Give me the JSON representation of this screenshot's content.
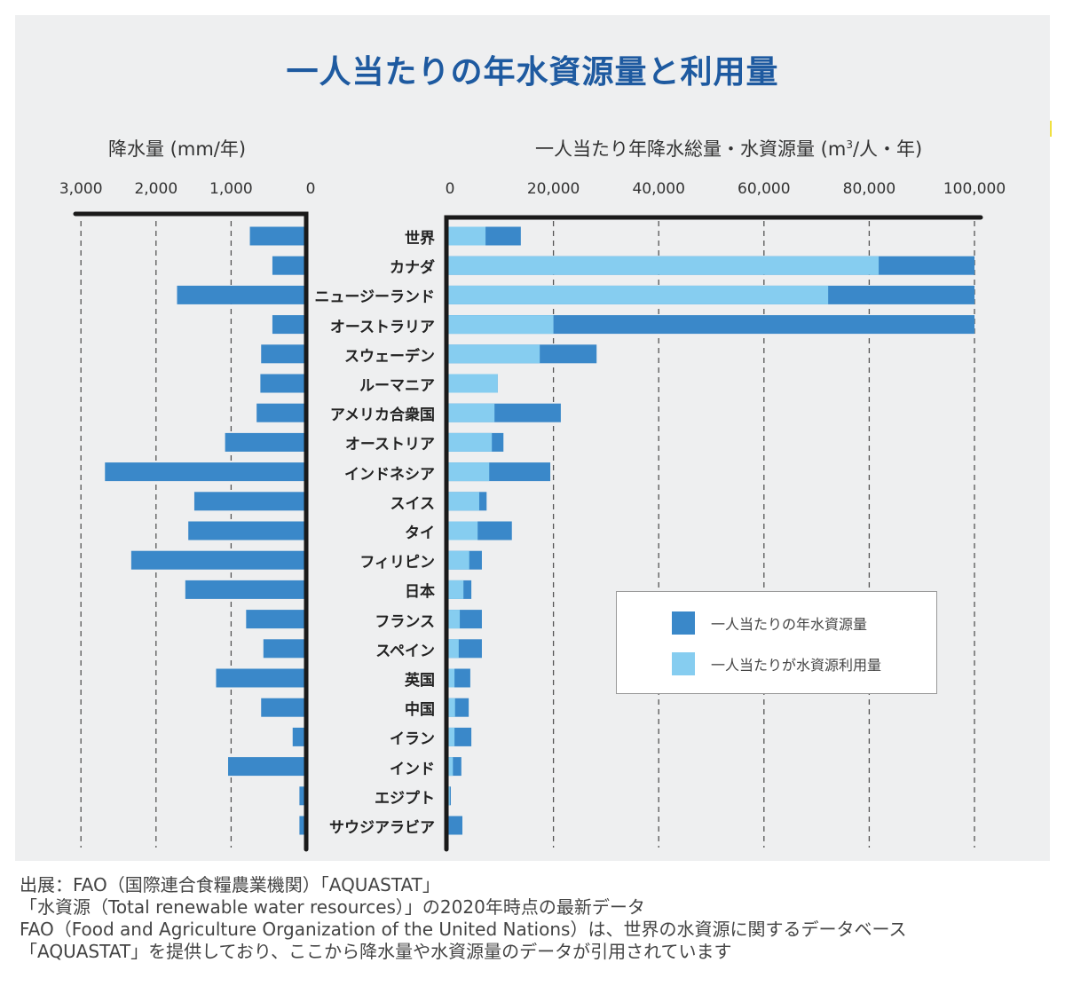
{
  "chart_data": [
    {
      "type": "bar",
      "orientation": "horizontal",
      "direction": "right-to-left",
      "title": "降水量 (mm/年)",
      "xlabel": "降水量 (mm/年)",
      "xlim": [
        0,
        3000
      ],
      "ticks": [
        3000,
        2000,
        1000,
        0
      ],
      "tick_labels": [
        "3,000",
        "2,000",
        "1,000",
        "0"
      ],
      "grid": "dashed-vertical",
      "categories": [
        "世界",
        "カナダ",
        "ニュージーランド",
        "オーストラリア",
        "スウェーデン",
        "ルーマニア",
        "アメリカ合衆国",
        "オーストリア",
        "インドネシア",
        "スイス",
        "タイ",
        "フィリピン",
        "日本",
        "フランス",
        "スペイン",
        "英国",
        "中国",
        "イラン",
        "インド",
        "エジプト",
        "サウジアラビア"
      ],
      "series": [
        {
          "name": "降水量",
          "color": "#3a88c9",
          "values": [
            750,
            450,
            1720,
            450,
            600,
            610,
            660,
            1080,
            2680,
            1490,
            1570,
            2330,
            1610,
            800,
            570,
            1200,
            600,
            180,
            1040,
            90,
            90
          ]
        }
      ]
    },
    {
      "type": "bar",
      "orientation": "horizontal",
      "stacked_overlay": true,
      "title": "一人当たり年降水総量・水資源量 (m³/人・年)",
      "xlabel": "一人当たり年降水総量・水資源量 (m³/人・年)",
      "xlim": [
        0,
        100000
      ],
      "ticks": [
        0,
        20000,
        40000,
        60000,
        80000,
        100000
      ],
      "tick_labels": [
        "0",
        "20,000",
        "40,000",
        "60,000",
        "80,000",
        "100,000"
      ],
      "grid": "dashed-vertical",
      "legend_position": "lower-right",
      "categories": [
        "世界",
        "カナダ",
        "ニュージーランド",
        "オーストラリア",
        "スウェーデン",
        "ルーマニア",
        "アメリカ合衆国",
        "オーストリア",
        "インドネシア",
        "スイス",
        "タイ",
        "フィリピン",
        "日本",
        "フランス",
        "スペイン",
        "英国",
        "中国",
        "イラン",
        "インド",
        "エジプト",
        "サウジアラビア"
      ],
      "series": [
        {
          "name": "一人当たりの年水資源量",
          "color": "#3a88c9",
          "values": [
            13800,
            100000,
            100000,
            100000,
            28200,
            9400,
            21400,
            10500,
            19400,
            7300,
            12100,
            6400,
            4400,
            6400,
            6400,
            4200,
            3900,
            4400,
            2500,
            500,
            2700
          ]
        },
        {
          "name": "一人当たりが水資源利用量",
          "color": "#86cdf0",
          "values": [
            7100,
            81800,
            72200,
            20000,
            17400,
            9400,
            8800,
            8300,
            7800,
            5900,
            5600,
            4000,
            2900,
            2200,
            2000,
            1200,
            1300,
            1200,
            900,
            300,
            0
          ]
        }
      ]
    }
  ],
  "header": {
    "title": "一人当たりの年水資源量と利用量",
    "left_axis_title": "降水量 (mm/年)",
    "right_axis_title_main": "一人当たり年降水総量・水資源量 (m",
    "right_axis_title_sup": "3",
    "right_axis_title_tail": "/人・年)"
  },
  "legend": {
    "items": [
      {
        "label": "一人当たりの年水資源量",
        "color": "#3a88c9"
      },
      {
        "label": "一人当たりが水資源利用量",
        "color": "#86cdf0"
      }
    ]
  },
  "footer": {
    "lines": [
      "出展：FAO（国際連合食糧農業機関）「AQUASTAT」",
      "「水資源（Total renewable water resources）」の2020年時点の最新データ",
      "FAO（Food and Agriculture Organization of the United Nations）は、世界の水資源に関するデータベース",
      "「AQUASTAT」を提供しており、ここから降水量や水資源量のデータが引用されています"
    ]
  }
}
